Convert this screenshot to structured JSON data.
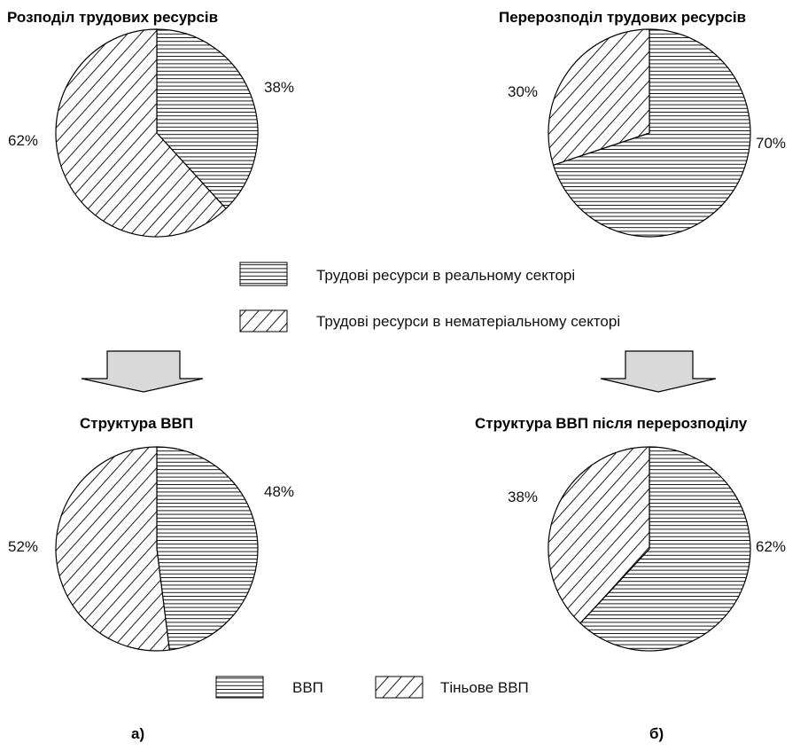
{
  "chart_data": [
    {
      "type": "pie",
      "title": "Розподіл трудових ресурсів",
      "slices": [
        {
          "label": "Трудові ресурси в реальному секторі",
          "value": 38,
          "display": "38%",
          "pattern": "horizontal"
        },
        {
          "label": "Трудові ресурси в нематеріальному секторі",
          "value": 62,
          "display": "62%",
          "pattern": "diagonal"
        }
      ]
    },
    {
      "type": "pie",
      "title": "Перерозподіл трудових ресурсів",
      "slices": [
        {
          "label": "Трудові ресурси в реальному секторі",
          "value": 70,
          "display": "70%",
          "pattern": "horizontal"
        },
        {
          "label": "Трудові ресурси в нематеріальному секторі",
          "value": 30,
          "display": "30%",
          "pattern": "diagonal"
        }
      ]
    },
    {
      "type": "pie",
      "title": "Структура ВВП",
      "slices": [
        {
          "label": "ВВП",
          "value": 48,
          "display": "48%",
          "pattern": "horizontal"
        },
        {
          "label": "Тіньове ВВП",
          "value": 52,
          "display": "52%",
          "pattern": "diagonal"
        }
      ]
    },
    {
      "type": "pie",
      "title": "Структура ВВП після перерозподілу",
      "slices": [
        {
          "label": "ВВП",
          "value": 62,
          "display": "62%",
          "pattern": "horizontal"
        },
        {
          "label": "Тіньове ВВП",
          "value": 38,
          "display": "38%",
          "pattern": "diagonal"
        }
      ]
    }
  ],
  "legend_top": [
    {
      "label": "Трудові ресурси в реальному секторі",
      "pattern": "horizontal"
    },
    {
      "label": "Трудові ресурси в нематеріальному секторі",
      "pattern": "diagonal"
    }
  ],
  "legend_bottom": [
    {
      "label": "ВВП",
      "pattern": "horizontal"
    },
    {
      "label": "Тіньове ВВП",
      "pattern": "diagonal"
    }
  ],
  "panel_labels": {
    "left": "а)",
    "right": "б)"
  },
  "colors": {
    "stroke": "#000000",
    "arrow_fill": "#d9d9d9",
    "background": "#ffffff"
  }
}
